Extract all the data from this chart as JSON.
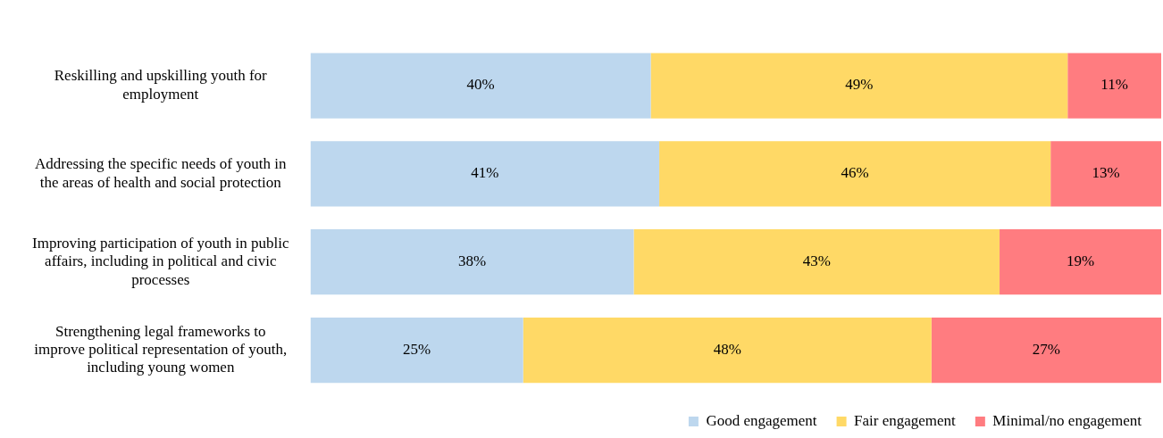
{
  "chart_data": {
    "type": "bar",
    "orientation": "horizontal",
    "stacked": true,
    "legend": "bottom right",
    "categories": [
      "Reskilling and upskilling youth for employment",
      "Addressing the specific needs of youth in the areas of health and social protection",
      "Improving participation of youth in public affairs, including in political and civic processes",
      "Strengthening legal frameworks to improve political representation of youth, including young women"
    ],
    "series": [
      {
        "name": "Good engagement",
        "color": "#bdd7ee",
        "values": [
          40,
          41,
          38,
          25
        ],
        "value_labels": [
          "40%",
          "41%",
          "38%",
          "25%"
        ]
      },
      {
        "name": "Fair engagement",
        "color": "#ffd966",
        "values": [
          49,
          46,
          43,
          48
        ],
        "value_labels": [
          "49%",
          "46%",
          "43%",
          "48%"
        ]
      },
      {
        "name": "Minimal/no engagement",
        "color": "#ff7c80",
        "values": [
          11,
          13,
          19,
          27
        ],
        "value_labels": [
          "11%",
          "13%",
          "19%",
          "27%"
        ]
      }
    ]
  }
}
